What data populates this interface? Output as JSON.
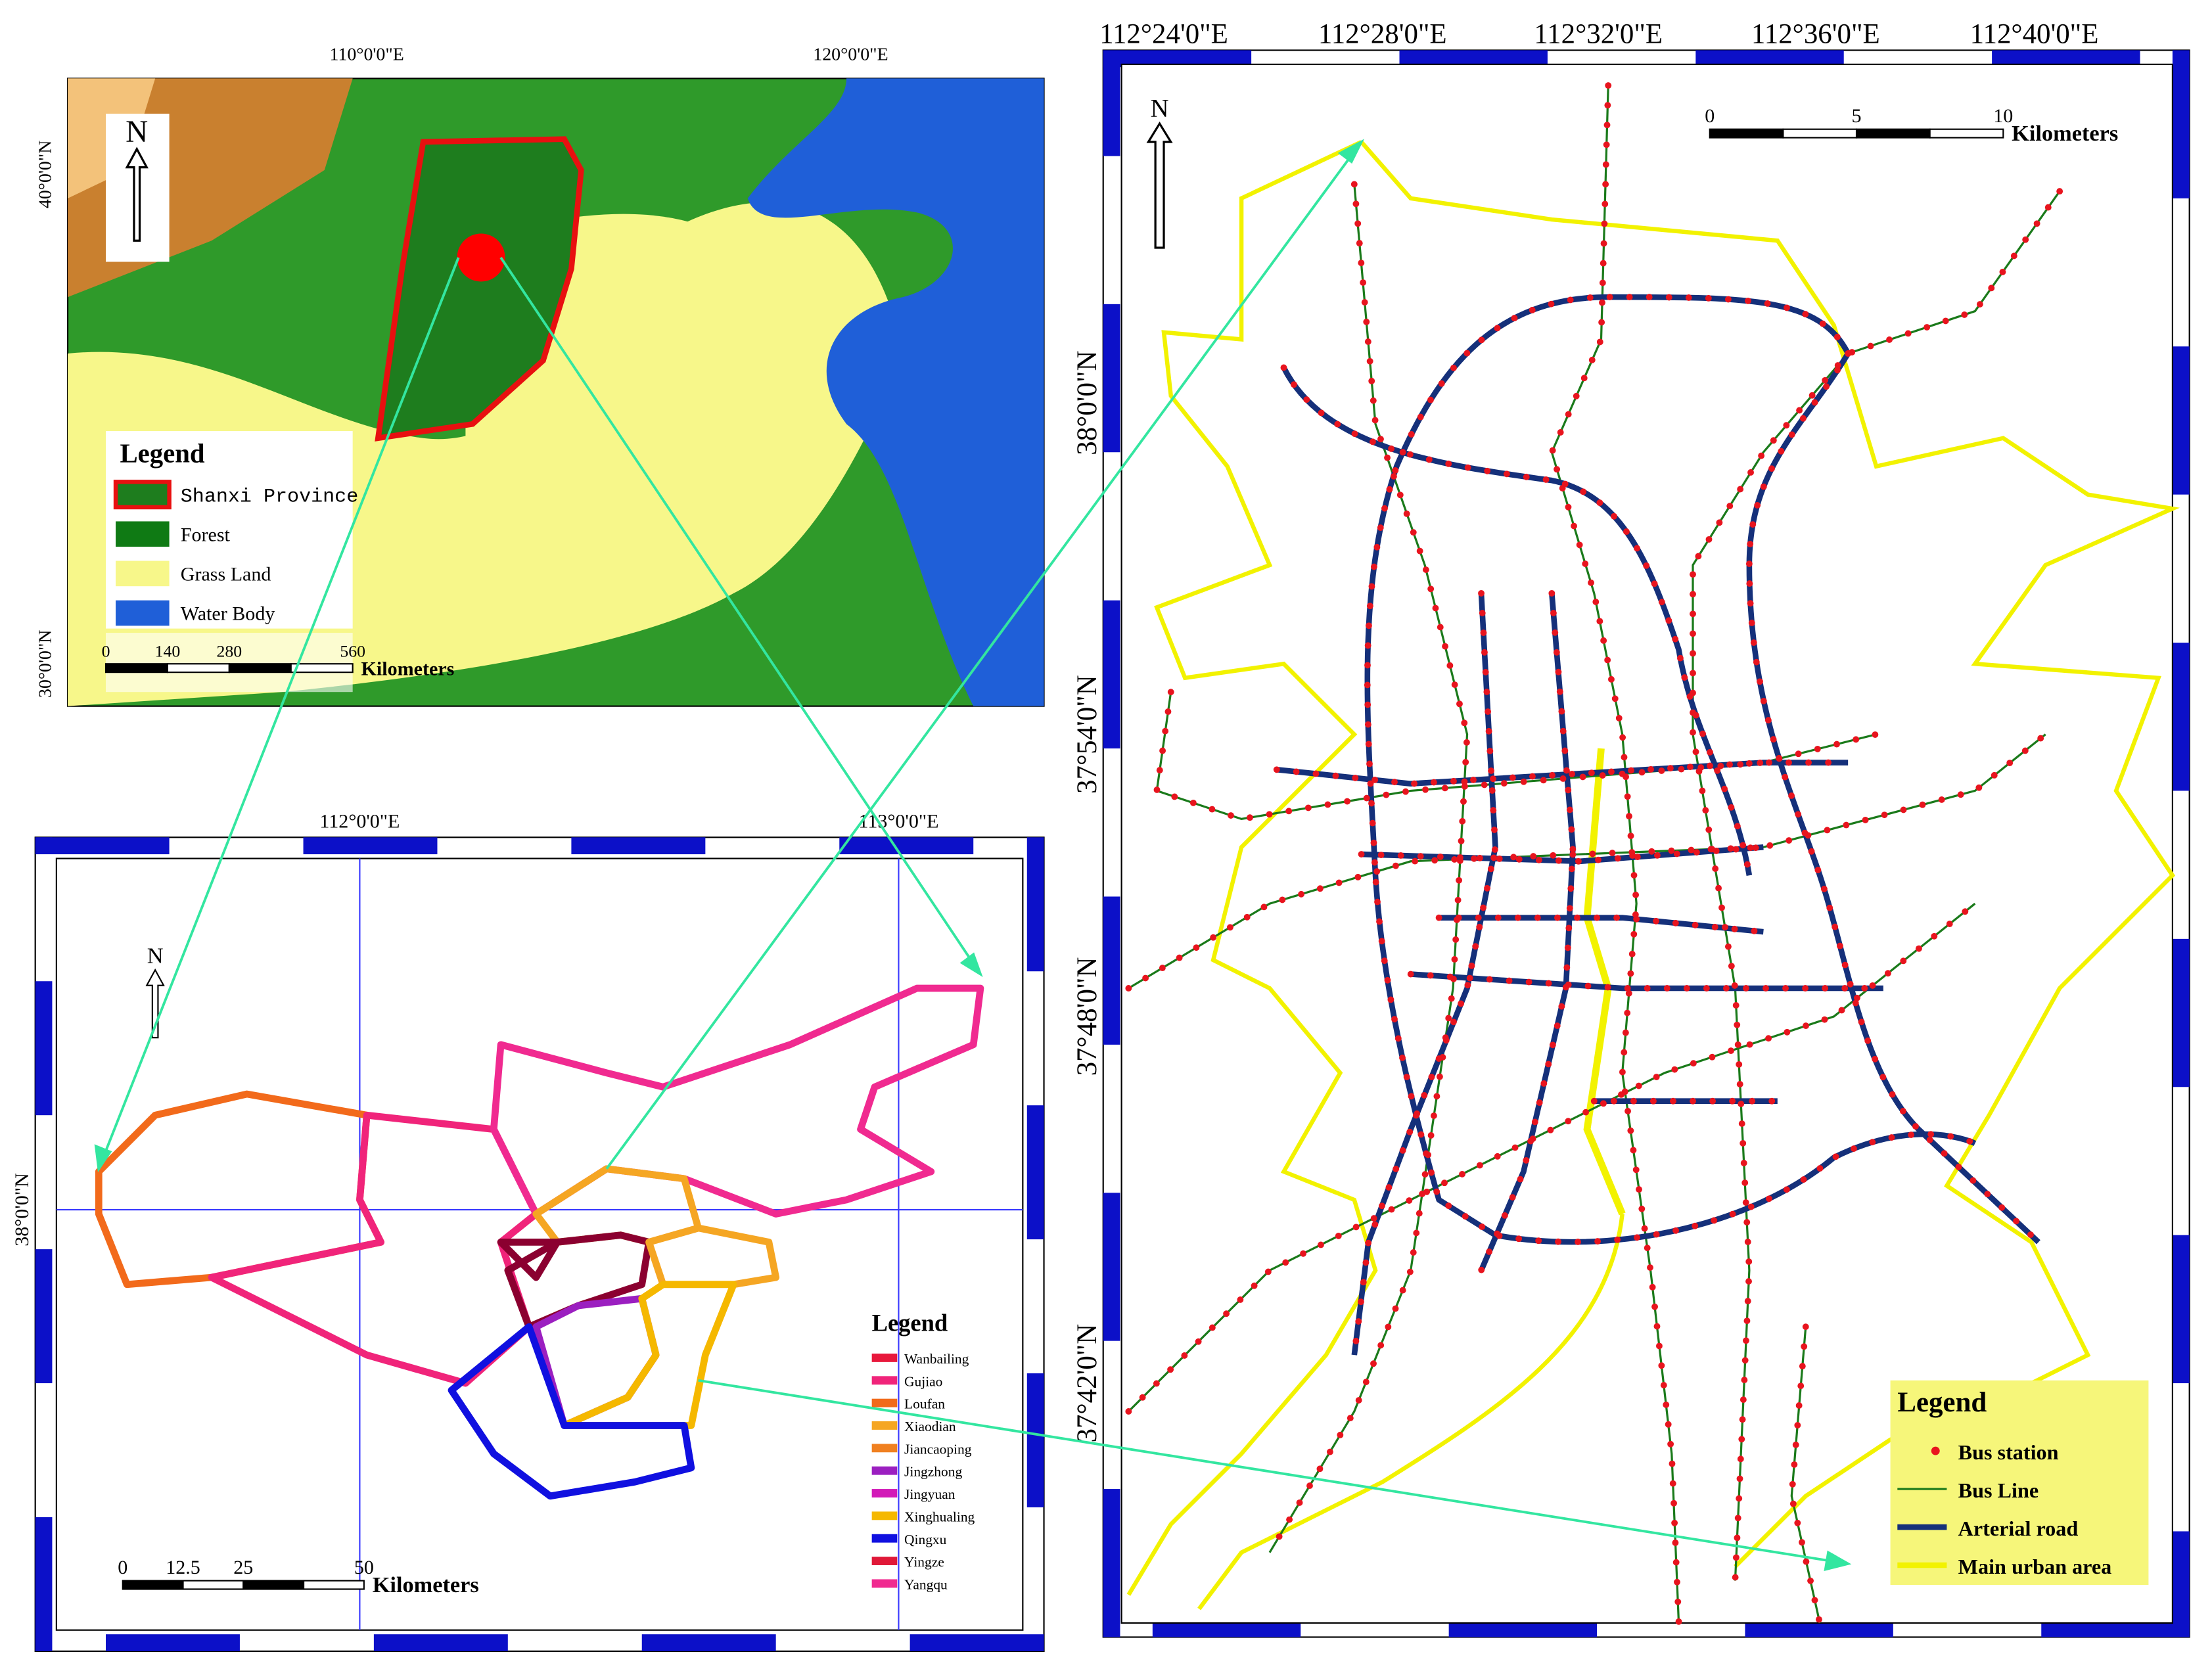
{
  "overview_map": {
    "lon_labels": [
      "110°0'0\"E",
      "120°0'0\"E"
    ],
    "lat_labels": [
      "40°0'0\"N",
      "30°0'0\"N"
    ],
    "north": "N",
    "legend": {
      "title": "Legend",
      "items": [
        {
          "label": "Shanxi Province",
          "color": "#1e7d1e"
        },
        {
          "label": "Forest",
          "color": "#0f7a14"
        },
        {
          "label": "Grass Land",
          "color": "#f7f78a"
        },
        {
          "label": "Water Body",
          "color": "#1f5fd8"
        }
      ]
    },
    "scale": {
      "ticks": [
        "0",
        "140",
        "280",
        "560"
      ],
      "unit": "Kilometers"
    }
  },
  "district_map": {
    "lon_labels": [
      "112°0'0\"E",
      "113°0'0\"E"
    ],
    "lat_labels": [
      "38°0'0\"N"
    ],
    "north": "N",
    "legend": {
      "title": "Legend",
      "items": [
        {
          "label": "Wanbailing",
          "color": "#e8183c"
        },
        {
          "label": "Gujiao",
          "color": "#f0247a"
        },
        {
          "label": "Loufan",
          "color": "#f26a1b"
        },
        {
          "label": "Xiaodian",
          "color": "#f5a623"
        },
        {
          "label": "Jiancaoping",
          "color": "#f08020"
        },
        {
          "label": "Jingzhong",
          "color": "#9b1fc0"
        },
        {
          "label": "Jingyuan",
          "color": "#d21ab8"
        },
        {
          "label": "Xinghualing",
          "color": "#f5b800"
        },
        {
          "label": "Qingxu",
          "color": "#1010e0"
        },
        {
          "label": "Yingze",
          "color": "#e01838"
        },
        {
          "label": "Yangqu",
          "color": "#f02a90"
        }
      ]
    },
    "scale": {
      "ticks": [
        "0",
        "12.5",
        "25",
        "50"
      ],
      "unit": "Kilometers"
    }
  },
  "city_map": {
    "lon_labels": [
      "112°24'0\"E",
      "112°28'0\"E",
      "112°32'0\"E",
      "112°36'0\"E",
      "112°40'0\"E"
    ],
    "lat_labels": [
      "38°0'0\"N",
      "37°54'0\"N",
      "37°48'0\"N",
      "37°42'0\"N"
    ],
    "north": "N",
    "scale": {
      "ticks": [
        "0",
        "5",
        "10"
      ],
      "unit": "Kilometers"
    },
    "legend": {
      "title": "Legend",
      "items": [
        {
          "label": "Bus station",
          "color": "#e8141e"
        },
        {
          "label": "Bus Line",
          "color": "#1a7a1a"
        },
        {
          "label": "Arterial road",
          "color": "#15307a"
        },
        {
          "label": "Main urban area",
          "color": "#f2f200"
        }
      ]
    }
  }
}
